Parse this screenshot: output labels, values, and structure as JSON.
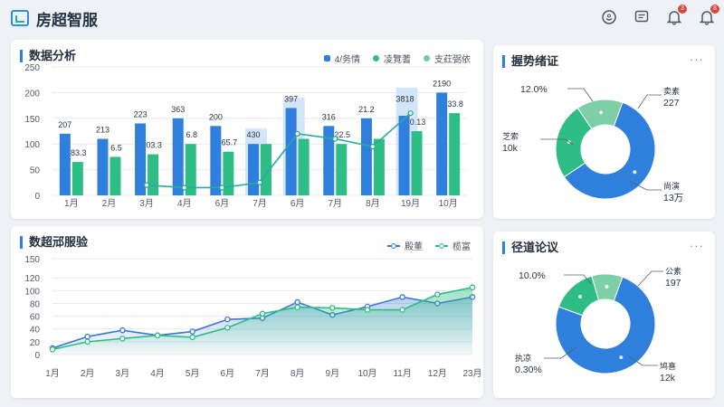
{
  "app": {
    "title": "房超智服"
  },
  "header_badges": {
    "bell": "3",
    "alert": "8"
  },
  "colors": {
    "blue": "#2f7fdc",
    "green": "#2ebd85",
    "light_blue": "#c9def8",
    "teal_line": "#2aa9a0"
  },
  "card1": {
    "title": "数据分析",
    "legend": [
      "4/务情",
      "凌覽蓍",
      "支荭弼依"
    ]
  },
  "card2": {
    "title": "数超邧服验",
    "legend": [
      "殿董",
      "榄富"
    ]
  },
  "card3": {
    "title": "握势绪证",
    "more": "···",
    "labels": [
      {
        "pct": "12.0%",
        "name": "",
        "value": ""
      },
      {
        "pct": "",
        "name": "卖素",
        "value": "227"
      },
      {
        "pct": "",
        "name": "芝索",
        "value": "10k"
      },
      {
        "pct": "",
        "name": "尚演",
        "value": "13万"
      }
    ]
  },
  "card4": {
    "title": "径道论议",
    "more": "···",
    "labels": [
      {
        "pct": "10.0%",
        "name": "",
        "value": ""
      },
      {
        "pct": "",
        "name": "公素",
        "value": "197"
      },
      {
        "pct": "",
        "name": "执凉",
        "value": "0.30%"
      },
      {
        "pct": "",
        "name": "鸠喜",
        "value": "12k"
      }
    ]
  },
  "chart_data": [
    {
      "type": "bar",
      "title": "数据分析",
      "categories": [
        "1月",
        "2月",
        "3月",
        "4月",
        "6月",
        "7月",
        "6月",
        "7月",
        "8月",
        "19月",
        "10月"
      ],
      "ylim": [
        0,
        250
      ],
      "yticks": [
        0,
        50,
        100,
        150,
        200,
        250
      ],
      "grid": true,
      "legend_position": "top-right",
      "series": [
        {
          "name": "4/务情",
          "values": [
            120,
            110,
            140,
            150,
            135,
            100,
            170,
            135,
            150,
            155,
            200
          ],
          "labels": [
            "207",
            "213",
            "223",
            "363",
            "200",
            "430",
            "397",
            "316",
            "21.2",
            "",
            "2190"
          ]
        },
        {
          "name": "凌覽蓍",
          "values": [
            65,
            75,
            80,
            100,
            85,
            100,
            110,
            100,
            110,
            125,
            160
          ],
          "labels": [
            "83.3",
            "6.5",
            "03.3",
            "6.8",
            "65.7",
            "",
            "",
            "22.5",
            "",
            "0.13",
            "33.8"
          ]
        },
        {
          "name": "支荭弼依",
          "values": [
            null,
            null,
            null,
            null,
            null,
            130,
            190,
            null,
            null,
            210,
            null
          ],
          "labels": [
            "",
            "",
            "",
            "",
            "",
            "",
            "",
            "",
            "",
            "3818",
            ""
          ]
        }
      ],
      "line": {
        "values": [
          null,
          null,
          20,
          15,
          15,
          25,
          120,
          110,
          95,
          160,
          null
        ]
      }
    },
    {
      "type": "area",
      "title": "数超邧服验",
      "categories": [
        "1月",
        "2月",
        "3月",
        "4月",
        "5月",
        "6月",
        "7月",
        "8月",
        "9月",
        "10月",
        "11月",
        "12月",
        "23月"
      ],
      "ylim": [
        0,
        150
      ],
      "yticks": [
        0,
        20,
        40,
        60,
        80,
        100,
        120,
        150
      ],
      "grid": true,
      "legend_position": "top-right",
      "series": [
        {
          "name": "殿董",
          "values": [
            10,
            28,
            38,
            30,
            36,
            55,
            57,
            82,
            62,
            75,
            90,
            80,
            90
          ]
        },
        {
          "name": "榄富",
          "values": [
            8,
            20,
            25,
            30,
            27,
            42,
            64,
            74,
            73,
            70,
            70,
            94,
            105
          ]
        }
      ]
    },
    {
      "type": "pie",
      "title": "握势绪证",
      "labels": [
        "卖素",
        "尚演",
        "芝索"
      ],
      "values": [
        60,
        25,
        15
      ]
    },
    {
      "type": "pie",
      "title": "径道论议",
      "labels": [
        "公素",
        "鸠喜",
        "执凉"
      ],
      "values": [
        75,
        15,
        10
      ]
    }
  ]
}
